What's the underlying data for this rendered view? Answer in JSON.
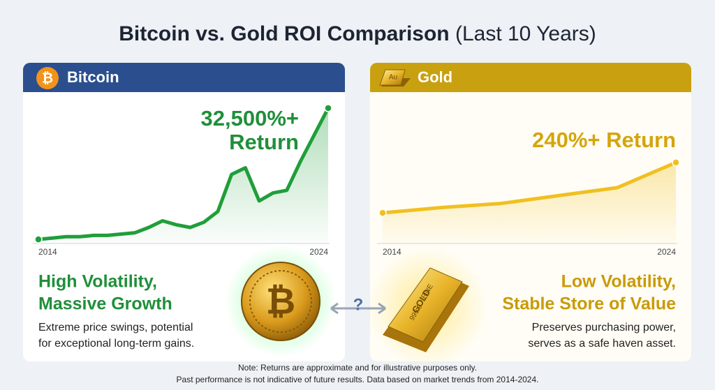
{
  "title": "Bitcoin vs. Gold ROI Comparison",
  "subtitle": "(Last 10 Years)",
  "panels": [
    {
      "header": "Bitcoin",
      "headline": [
        "32,500%+",
        "Return"
      ],
      "heading": [
        "High Volatility,",
        "Massive Growth"
      ],
      "description": [
        "Extreme price swings, potential",
        "for exceptional long-term gains."
      ]
    },
    {
      "header": "Gold",
      "icon_label": "Au",
      "headline": [
        "240%+ Return"
      ],
      "heading": [
        "Low Volatility,",
        "Stable Store of Value"
      ],
      "description": [
        "Preserves purchasing power,",
        "serves as a safe haven asset."
      ],
      "bar_text": [
        "FINE",
        "GOLD",
        "999.9"
      ]
    }
  ],
  "connector": "?",
  "note": [
    "Note: Returns are approximate and for illustrative purposes only.",
    "Past performance is not indicative of future results. Data based on market trends from 2014-2024."
  ],
  "chart_data": [
    {
      "type": "line",
      "color": "#1f9e3a",
      "ylim": [
        0,
        100
      ],
      "categories": [
        "2014",
        null,
        null,
        null,
        null,
        null,
        null,
        null,
        null,
        null,
        null,
        null,
        null,
        null,
        null,
        null,
        null,
        null,
        null,
        null,
        null,
        "2024"
      ],
      "values": [
        1,
        2,
        3,
        3,
        4,
        4,
        5,
        6,
        10,
        15,
        12,
        10,
        14,
        22,
        50,
        55,
        30,
        36,
        38,
        60,
        80,
        100
      ]
    },
    {
      "type": "line",
      "color": "#f0c020",
      "ylim": [
        0,
        100
      ],
      "categories": [
        "2014",
        null,
        null,
        null,
        null,
        "2024"
      ],
      "values": [
        21,
        25,
        28,
        34,
        40,
        59
      ]
    }
  ]
}
